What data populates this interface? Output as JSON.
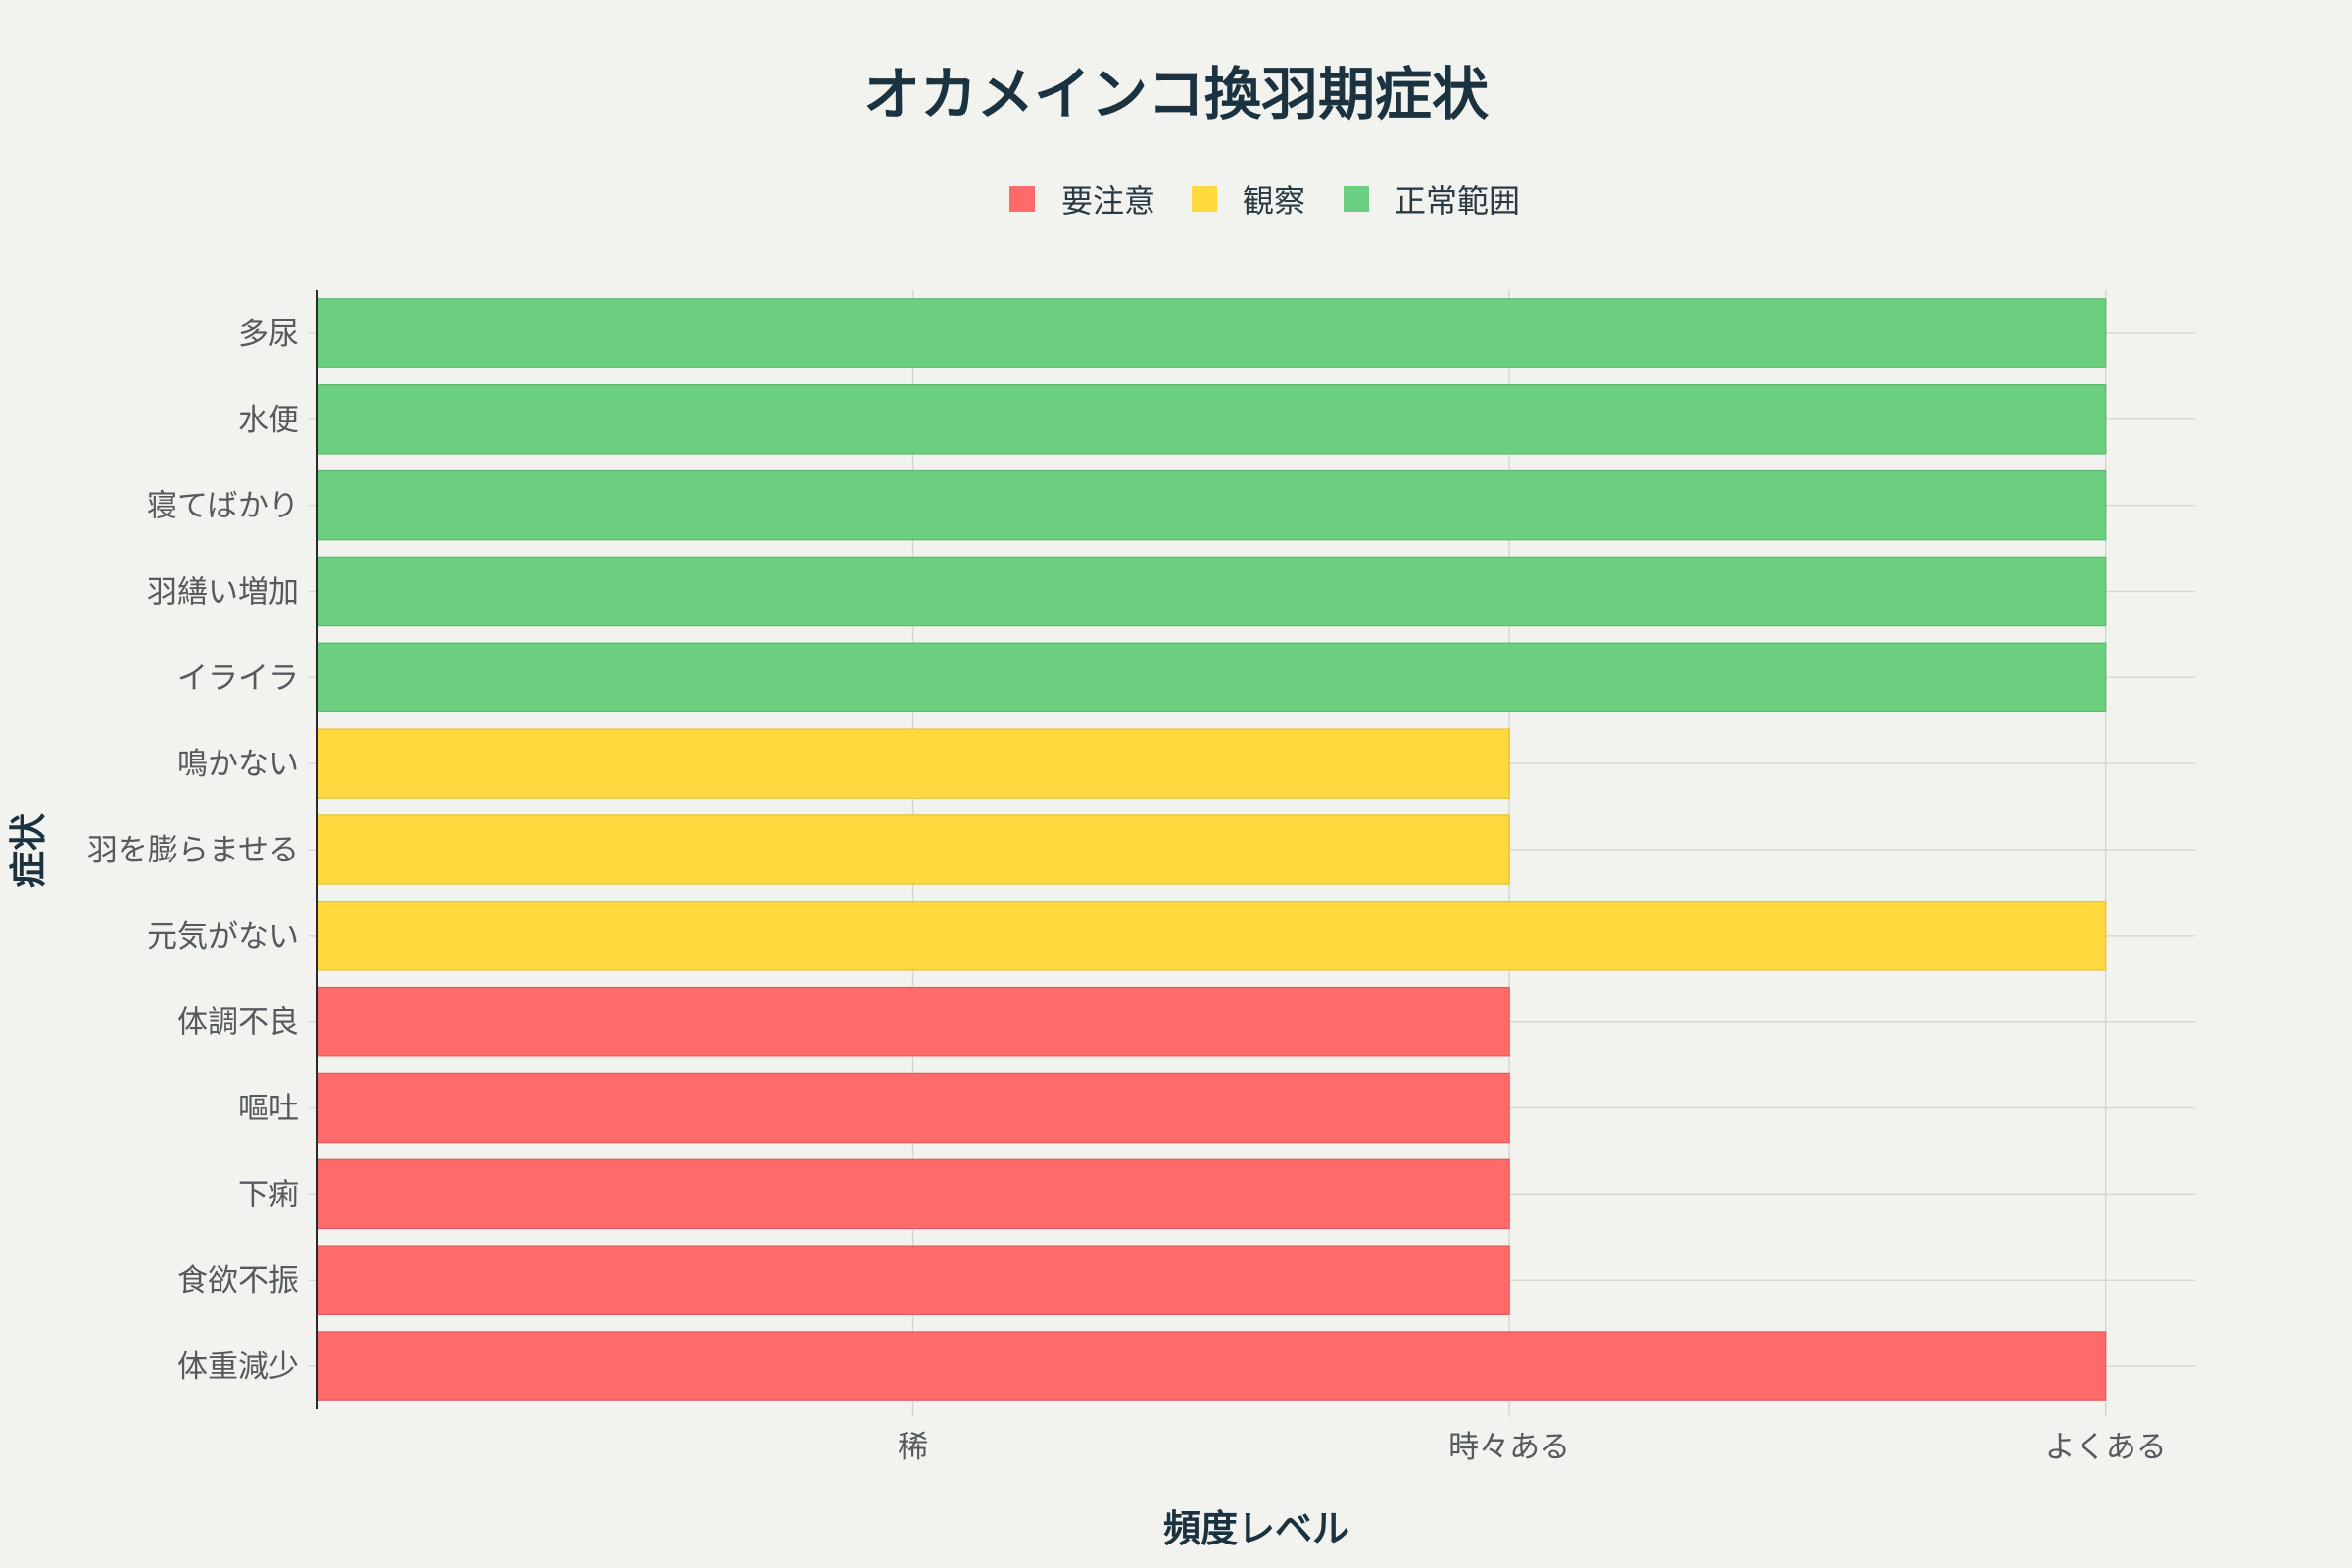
{
  "chart_data": {
    "type": "bar",
    "orientation": "horizontal",
    "title": "オカメインコ換羽期症状",
    "xlabel": "頻度レベル",
    "ylabel": "症状",
    "x_ticks": [
      {
        "value": 1,
        "label": "稀"
      },
      {
        "value": 2,
        "label": "時々ある"
      },
      {
        "value": 3,
        "label": "よくある"
      }
    ],
    "xlim": [
      0,
      3.15
    ],
    "grid": true,
    "legend_position": "top-center",
    "legend": [
      {
        "name": "要注意",
        "color": "#ff6b6b"
      },
      {
        "name": "観察",
        "color": "#ffd93d"
      },
      {
        "name": "正常範囲",
        "color": "#6bcf7f"
      }
    ],
    "categories": [
      "多尿",
      "水便",
      "寝てばかり",
      "羽繕い増加",
      "イライラ",
      "鳴かない",
      "羽を膨らませる",
      "元気がない",
      "体調不良",
      "嘔吐",
      "下痢",
      "食欲不振",
      "体重減少"
    ],
    "values": [
      3,
      3,
      3,
      3,
      3,
      2,
      2,
      3,
      2,
      2,
      2,
      2,
      3
    ],
    "groups": [
      "正常範囲",
      "正常範囲",
      "正常範囲",
      "正常範囲",
      "正常範囲",
      "観察",
      "観察",
      "観察",
      "要注意",
      "要注意",
      "要注意",
      "要注意",
      "要注意"
    ]
  }
}
